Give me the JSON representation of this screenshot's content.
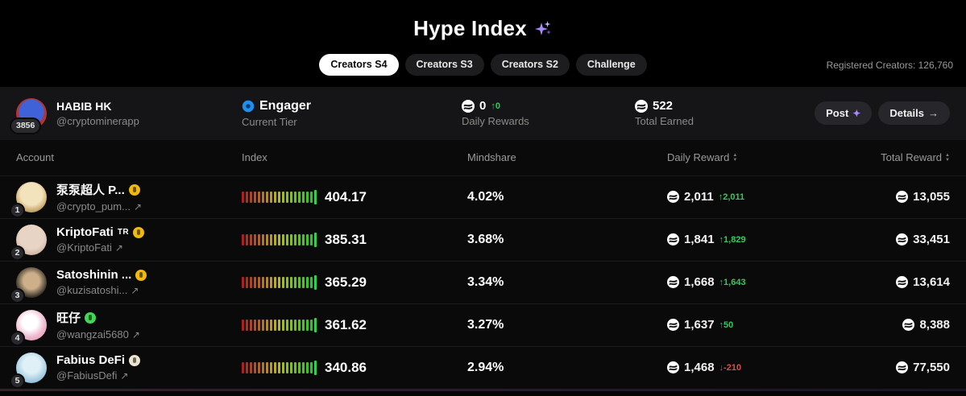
{
  "header": {
    "title": "Hype Index",
    "registered_creators": "Registered Creators: 126,760",
    "tabs": [
      {
        "label": "Creators S4"
      },
      {
        "label": "Creators S3"
      },
      {
        "label": "Creators S2"
      },
      {
        "label": "Challenge"
      }
    ]
  },
  "profile": {
    "rank": "3856",
    "name": "HABIB HK",
    "handle": "@cryptominerapp",
    "external_arrow": "",
    "tier": {
      "value": "Engager",
      "label": "Current Tier"
    },
    "daily": {
      "value": "0",
      "delta": "↑0",
      "label": "Daily Rewards"
    },
    "total": {
      "value": "522",
      "label": "Total Earned"
    },
    "post_button": "Post",
    "details_button": "Details",
    "details_arrow": "→"
  },
  "table": {
    "headers": {
      "account": "Account",
      "index": "Index",
      "mindshare": "Mindshare",
      "daily": "Daily Reward",
      "total": "Total Reward"
    },
    "rows": [
      {
        "rank": "1",
        "name": "泵泵超人 P...",
        "suffix": "",
        "badge": "gold",
        "handle": "@crypto_pum...",
        "arrow": "↗",
        "index": "404.17",
        "mindshare": "4.02%",
        "daily": "2,011",
        "delta": "↑2,011",
        "delta_dir": "up",
        "total": "13,055"
      },
      {
        "rank": "2",
        "name": "KriptoFati",
        "suffix": "TR",
        "badge": "gold",
        "handle": "@KriptoFati",
        "arrow": "↗",
        "index": "385.31",
        "mindshare": "3.68%",
        "daily": "1,841",
        "delta": "↑1,829",
        "delta_dir": "up",
        "total": "33,451"
      },
      {
        "rank": "3",
        "name": "Satoshinin ...",
        "suffix": "",
        "badge": "gold",
        "handle": "@kuzisatoshi...",
        "arrow": "↗",
        "index": "365.29",
        "mindshare": "3.34%",
        "daily": "1,668",
        "delta": "↑1,643",
        "delta_dir": "up",
        "total": "13,614"
      },
      {
        "rank": "4",
        "name": "旺仔",
        "suffix": "",
        "badge": "green",
        "handle": "@wangzai5680",
        "arrow": "↗",
        "index": "361.62",
        "mindshare": "3.27%",
        "daily": "1,637",
        "delta": "↑50",
        "delta_dir": "up",
        "total": "8,388"
      },
      {
        "rank": "5",
        "name": "Fabius DeFi",
        "suffix": "",
        "badge": "cream",
        "handle": "@FabiusDefi",
        "arrow": "↗",
        "index": "340.86",
        "mindshare": "2.94%",
        "daily": "1,468",
        "delta": "↓-210",
        "delta_dir": "down",
        "total": "77,550"
      }
    ]
  },
  "colors": {
    "accent_purple": "#a78bfa",
    "positive_green": "#2ecc5e",
    "negative_red": "#e5484d",
    "gold_badge": "#f0b90b"
  }
}
